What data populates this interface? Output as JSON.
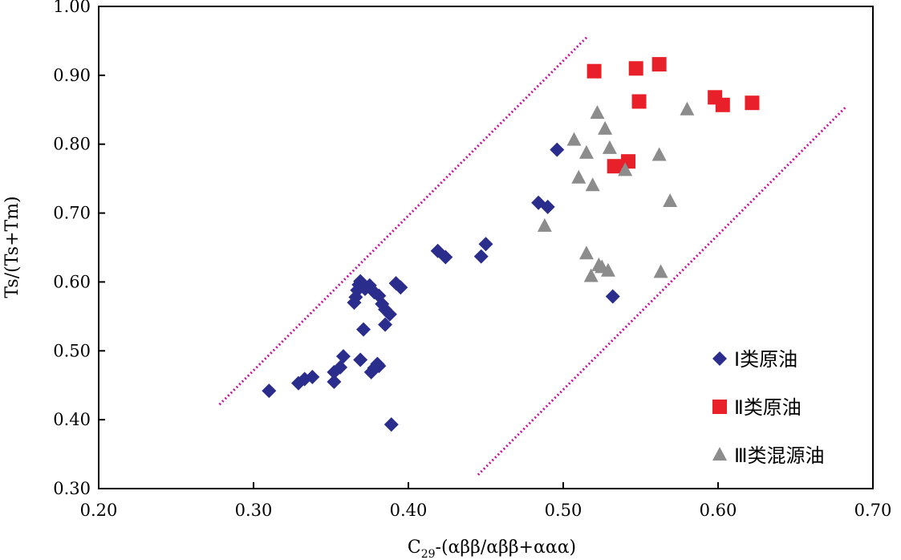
{
  "chart_data": {
    "type": "scatter",
    "title": "",
    "xlabel": "C29-(αββ/αββ+ααα)",
    "xlabel_main": "C",
    "xlabel_sub": "29",
    "xlabel_rest": "-(αββ/αββ+ααα)",
    "ylabel": "Ts/(Ts+Tm)",
    "xlim": [
      0.2,
      0.7
    ],
    "ylim": [
      0.3,
      1.0
    ],
    "x_ticks": [
      "0.20",
      "0.30",
      "0.40",
      "0.50",
      "0.60",
      "0.70"
    ],
    "y_ticks": [
      "0.30",
      "0.40",
      "0.50",
      "0.60",
      "0.70",
      "0.80",
      "0.90",
      "1.00"
    ],
    "grid": false,
    "legend_position": "bottom-right",
    "series": [
      {
        "name": "Ⅰ类原油",
        "marker": "diamond",
        "color": "#2a2d8c",
        "points": [
          [
            0.31,
            0.442
          ],
          [
            0.329,
            0.453
          ],
          [
            0.333,
            0.459
          ],
          [
            0.338,
            0.462
          ],
          [
            0.352,
            0.455
          ],
          [
            0.352,
            0.469
          ],
          [
            0.356,
            0.476
          ],
          [
            0.358,
            0.492
          ],
          [
            0.369,
            0.487
          ],
          [
            0.371,
            0.531
          ],
          [
            0.376,
            0.469
          ],
          [
            0.378,
            0.475
          ],
          [
            0.38,
            0.481
          ],
          [
            0.381,
            0.478
          ],
          [
            0.385,
            0.538
          ],
          [
            0.385,
            0.56
          ],
          [
            0.388,
            0.553
          ],
          [
            0.389,
            0.393
          ],
          [
            0.365,
            0.57
          ],
          [
            0.366,
            0.578
          ],
          [
            0.367,
            0.588
          ],
          [
            0.368,
            0.596
          ],
          [
            0.369,
            0.601
          ],
          [
            0.372,
            0.59
          ],
          [
            0.375,
            0.595
          ],
          [
            0.378,
            0.585
          ],
          [
            0.381,
            0.58
          ],
          [
            0.383,
            0.568
          ],
          [
            0.392,
            0.598
          ],
          [
            0.395,
            0.592
          ],
          [
            0.419,
            0.645
          ],
          [
            0.424,
            0.636
          ],
          [
            0.447,
            0.637
          ],
          [
            0.45,
            0.655
          ],
          [
            0.484,
            0.715
          ],
          [
            0.49,
            0.709
          ],
          [
            0.496,
            0.792
          ],
          [
            0.532,
            0.579
          ]
        ]
      },
      {
        "name": "Ⅱ类原油",
        "marker": "square",
        "color": "#e8202a",
        "points": [
          [
            0.52,
            0.906
          ],
          [
            0.547,
            0.91
          ],
          [
            0.562,
            0.916
          ],
          [
            0.549,
            0.862
          ],
          [
            0.598,
            0.868
          ],
          [
            0.603,
            0.857
          ],
          [
            0.622,
            0.86
          ],
          [
            0.533,
            0.768
          ],
          [
            0.542,
            0.775
          ]
        ]
      },
      {
        "name": "Ⅲ类混源油",
        "marker": "triangle",
        "color": "#8c8c8c",
        "points": [
          [
            0.522,
            0.845
          ],
          [
            0.527,
            0.822
          ],
          [
            0.53,
            0.794
          ],
          [
            0.507,
            0.806
          ],
          [
            0.515,
            0.787
          ],
          [
            0.562,
            0.784
          ],
          [
            0.58,
            0.85
          ],
          [
            0.51,
            0.751
          ],
          [
            0.519,
            0.74
          ],
          [
            0.54,
            0.762
          ],
          [
            0.569,
            0.717
          ],
          [
            0.488,
            0.681
          ],
          [
            0.515,
            0.641
          ],
          [
            0.523,
            0.624
          ],
          [
            0.525,
            0.621
          ],
          [
            0.529,
            0.616
          ],
          [
            0.518,
            0.608
          ],
          [
            0.563,
            0.614
          ]
        ]
      }
    ],
    "reference_lines": [
      {
        "style": "dotted",
        "color": "#c8169a",
        "from": [
          0.278,
          0.422
        ],
        "to": [
          0.516,
          0.957
        ]
      },
      {
        "style": "dotted",
        "color": "#c8169a",
        "from": [
          0.445,
          0.32
        ],
        "to": [
          0.683,
          0.855
        ]
      }
    ]
  }
}
